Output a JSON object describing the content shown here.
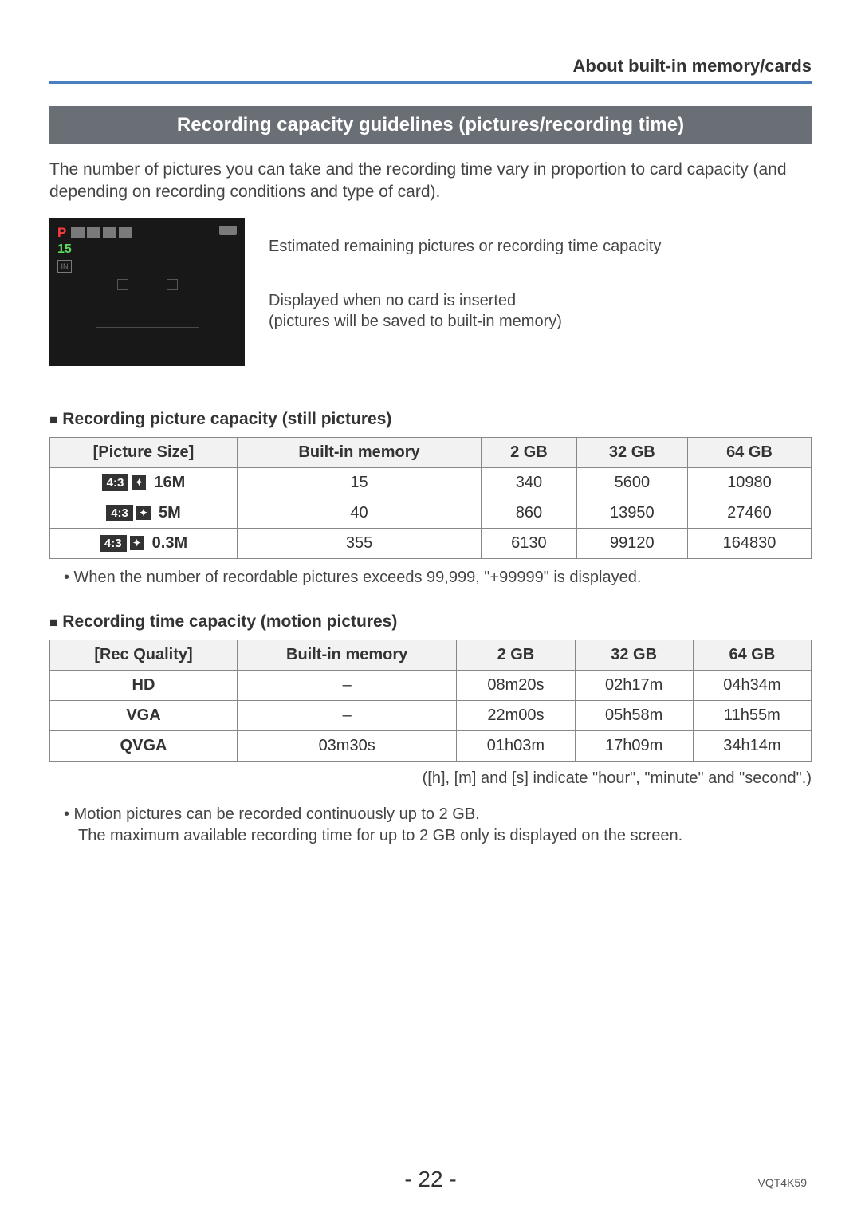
{
  "header": {
    "right": "About built-in memory/cards"
  },
  "title_bar": "Recording capacity guidelines (pictures/recording time)",
  "intro": "The number of pictures you can take and the recording time vary in proportion to card capacity (and depending on recording conditions and type of card).",
  "diagram": {
    "camera": {
      "p_label": "P",
      "number": "15",
      "in_label": "IN"
    },
    "annot1": "Estimated remaining pictures or recording time capacity",
    "annot2_line1": "Displayed when no card is inserted",
    "annot2_line2": "(pictures will be saved to built-in memory)"
  },
  "section1": {
    "heading": "Recording picture capacity (still pictures)",
    "columns": [
      "[Picture Size]",
      "Built-in memory",
      "2 GB",
      "32 GB",
      "64 GB"
    ],
    "rows": [
      {
        "ratio": "4:3",
        "size": "16M",
        "v1": "15",
        "v2": "340",
        "v3": "5600",
        "v4": "10980"
      },
      {
        "ratio": "4:3",
        "size": "5M",
        "v1": "40",
        "v2": "860",
        "v3": "13950",
        "v4": "27460"
      },
      {
        "ratio": "4:3",
        "size": "0.3M",
        "v1": "355",
        "v2": "6130",
        "v3": "99120",
        "v4": "164830"
      }
    ],
    "note": "• When the number of recordable pictures exceeds 99,999, \"+99999\" is displayed."
  },
  "section2": {
    "heading": "Recording time capacity (motion pictures)",
    "columns": [
      "[Rec Quality]",
      "Built-in memory",
      "2 GB",
      "32 GB",
      "64 GB"
    ],
    "rows": [
      {
        "q": "HD",
        "v1": "–",
        "v2": "08m20s",
        "v3": "02h17m",
        "v4": "04h34m"
      },
      {
        "q": "VGA",
        "v1": "–",
        "v2": "22m00s",
        "v3": "05h58m",
        "v4": "11h55m"
      },
      {
        "q": "QVGA",
        "v1": "03m30s",
        "v2": "01h03m",
        "v3": "17h09m",
        "v4": "34h14m"
      }
    ],
    "right_note": "([h], [m] and [s] indicate \"hour\", \"minute\" and \"second\".)",
    "note1": "• Motion pictures can be recorded continuously up to 2 GB.",
    "note2": "The maximum available recording time for up to 2 GB only is displayed on the screen."
  },
  "footer": {
    "page": "- 22 -",
    "code": "VQT4K59"
  }
}
